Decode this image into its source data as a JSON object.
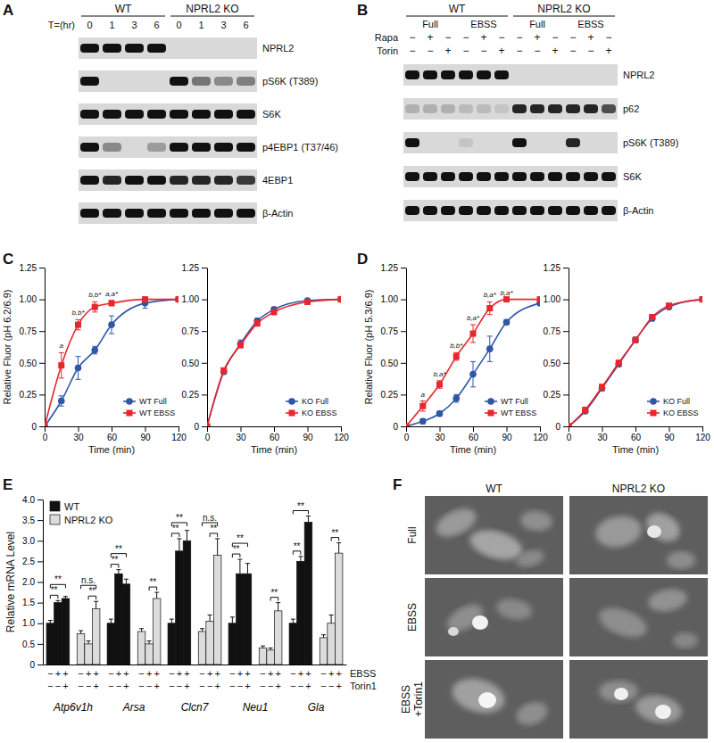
{
  "blots": [
    {
      "panel": "A",
      "groups": [
        {
          "label": "WT",
          "span": 4
        },
        {
          "label": "NPRL2 KO",
          "span": 4
        }
      ],
      "lane_header_label": "T=(hr)",
      "lane_headers": [
        "0",
        "1",
        "3",
        "6",
        "0",
        "1",
        "3",
        "6"
      ],
      "rows": [
        {
          "label": "NPRL2",
          "bands": [
            1,
            1,
            1,
            1,
            0,
            0,
            0,
            0
          ]
        },
        {
          "label": "pS6K (T389)",
          "bands": [
            1,
            0,
            0,
            0,
            1,
            0.5,
            0.4,
            0.45
          ]
        },
        {
          "label": "S6K",
          "bands": [
            1,
            1,
            1,
            1,
            1,
            1,
            1,
            1
          ]
        },
        {
          "label": "p4EBP1 (T37/46)",
          "bands": [
            1,
            0.4,
            0,
            0.3,
            1,
            1,
            1,
            1
          ]
        },
        {
          "label": "4EBP1",
          "bands": [
            1,
            0.9,
            1,
            1,
            0.9,
            0.9,
            0.9,
            0.8
          ]
        },
        {
          "label": "β-Actin",
          "bands": [
            1,
            1,
            1,
            1,
            1,
            1,
            1,
            1
          ]
        }
      ]
    },
    {
      "panel": "B",
      "groups": [
        {
          "label": "WT",
          "span": 6
        },
        {
          "label": "NPRL2 KO",
          "span": 6
        }
      ],
      "subgroups": [
        {
          "label": "Full",
          "span": 3
        },
        {
          "label": "EBSS",
          "span": 3
        },
        {
          "label": "Full",
          "span": 3
        },
        {
          "label": "EBSS",
          "span": 3
        }
      ],
      "treatments": [
        {
          "label": "Rapa",
          "signs": [
            "−",
            "+",
            "−",
            "−",
            "+",
            "−",
            "−",
            "+",
            "−",
            "−",
            "+",
            "−"
          ]
        },
        {
          "label": "Torin",
          "signs": [
            "−",
            "−",
            "+",
            "−",
            "−",
            "+",
            "−",
            "−",
            "+",
            "−",
            "−",
            "+"
          ]
        }
      ],
      "rows": [
        {
          "label": "NPRL2",
          "bands": [
            1,
            1,
            1,
            1,
            1,
            1,
            0,
            0,
            0,
            0,
            0,
            0
          ]
        },
        {
          "label": "p62",
          "bands": [
            0.2,
            0.2,
            0.2,
            0.15,
            0.15,
            0.1,
            0.9,
            0.9,
            0.9,
            0.9,
            0.9,
            0.7
          ]
        },
        {
          "label": "pS6K (T389)",
          "bands": [
            1,
            0,
            0,
            0.1,
            0,
            0,
            1,
            0,
            0,
            0.9,
            0,
            0
          ]
        },
        {
          "label": "S6K",
          "bands": [
            1,
            1,
            1,
            1,
            1,
            1,
            1,
            1,
            1,
            1,
            1,
            1
          ]
        },
        {
          "label": "β-Actin",
          "bands": [
            1,
            1,
            1,
            1,
            1,
            1,
            1,
            1,
            1,
            1,
            1,
            1
          ]
        }
      ]
    }
  ],
  "chart_data": [
    {
      "type": "line",
      "panel": "C",
      "x_label": "Time (min)",
      "y_label": "Relative Fluor (pH 6.2/6.9)",
      "x": [
        0,
        15,
        30,
        45,
        60,
        90,
        120
      ],
      "series": [
        {
          "name": "WT Full",
          "color": "#2e57a6",
          "marker": "circle",
          "values": [
            0,
            0.2,
            0.46,
            0.6,
            0.8,
            0.97,
            1.0
          ],
          "errors": [
            0,
            0.04,
            0.09,
            0.03,
            0.07,
            0.04,
            0
          ]
        },
        {
          "name": "WT EBSS",
          "color": "#e8262d",
          "marker": "square",
          "values": [
            0,
            0.48,
            0.8,
            0.94,
            0.97,
            1.0,
            1.0
          ],
          "errors": [
            0,
            0.1,
            0.04,
            0.04,
            0.02,
            0,
            0
          ]
        }
      ],
      "xlim": [
        0,
        120
      ],
      "ylim": [
        0,
        1.25
      ],
      "xticks": [
        0,
        30,
        60,
        90,
        120
      ],
      "yticks": [
        0,
        0.25,
        {
          "value": 0.5,
          "label": "0.50"
        },
        0.75,
        {
          "value": 1,
          "label": "1.00"
        },
        1.25
      ],
      "legend": "lower right",
      "annotations": [
        {
          "x": 15,
          "text": "a"
        },
        {
          "x": 30,
          "text": "b,b*"
        },
        {
          "x": 45,
          "text": "b,b*"
        },
        {
          "x": 60,
          "text": "a,a*"
        }
      ]
    },
    {
      "type": "line",
      "x_label": "Time (min)",
      "x": [
        0,
        15,
        30,
        45,
        60,
        90,
        120
      ],
      "series": [
        {
          "name": "KO Full",
          "color": "#2e57a6",
          "marker": "circle",
          "values": [
            0,
            0.43,
            0.65,
            0.83,
            0.92,
            0.99,
            1.0
          ],
          "errors": [
            0,
            0.02,
            0.03,
            0.02,
            0.02,
            0.01,
            0
          ]
        },
        {
          "name": "KO EBSS",
          "color": "#e8262d",
          "marker": "square",
          "values": [
            0,
            0.44,
            0.64,
            0.81,
            0.9,
            0.98,
            1.0
          ],
          "errors": [
            0,
            0.02,
            0.02,
            0.02,
            0.02,
            0.01,
            0
          ]
        }
      ],
      "xlim": [
        0,
        120
      ],
      "ylim": [
        0,
        1.25
      ],
      "xticks": [
        0,
        30,
        60,
        90,
        120
      ],
      "yticks": [
        0,
        0.25,
        {
          "value": 0.5,
          "label": "0.50"
        },
        0.75,
        {
          "value": 1,
          "label": "1.00"
        },
        1.25
      ],
      "legend": "lower right"
    },
    {
      "type": "line",
      "panel": "D",
      "x_label": "Time (min)",
      "y_label": "Relative Fluor (pH 5.3/6.9)",
      "x": [
        0,
        15,
        30,
        45,
        60,
        75,
        90,
        120
      ],
      "series": [
        {
          "name": "WT Full",
          "color": "#2e57a6",
          "marker": "circle",
          "values": [
            0,
            0.04,
            0.1,
            0.22,
            0.41,
            0.61,
            0.82,
            0.97
          ],
          "errors": [
            0,
            0.02,
            0.02,
            0.03,
            0.1,
            0.1,
            0.02,
            0.02
          ]
        },
        {
          "name": "WT EBSS",
          "color": "#e8262d",
          "marker": "square",
          "values": [
            0,
            0.16,
            0.33,
            0.55,
            0.73,
            0.93,
            1.0,
            1.0
          ],
          "errors": [
            0,
            0.04,
            0.03,
            0.03,
            0.07,
            0.05,
            0,
            0
          ]
        }
      ],
      "xlim": [
        0,
        120
      ],
      "ylim": [
        0,
        1.25
      ],
      "xticks": [
        0,
        30,
        60,
        90,
        120
      ],
      "yticks": [
        0,
        0.25,
        {
          "value": 0.5,
          "label": "0.50"
        },
        0.75,
        {
          "value": 1,
          "label": "1.00"
        },
        1.25
      ],
      "legend": "lower right",
      "annotations": [
        {
          "x": 15,
          "text": "a"
        },
        {
          "x": 30,
          "text": "b,a*"
        },
        {
          "x": 45,
          "text": "b,b*"
        },
        {
          "x": 60,
          "text": "b,a*"
        },
        {
          "x": 75,
          "text": "b,a*"
        },
        {
          "x": 90,
          "text": "b,a*"
        }
      ]
    },
    {
      "type": "line",
      "x_label": "Time (min)",
      "x": [
        0,
        15,
        30,
        45,
        60,
        75,
        90,
        120
      ],
      "series": [
        {
          "name": "KO Full",
          "color": "#2e57a6",
          "marker": "circle",
          "values": [
            0,
            0.12,
            0.3,
            0.49,
            0.68,
            0.85,
            0.94,
            1.0
          ],
          "errors": [
            0,
            0.01,
            0.02,
            0.02,
            0.02,
            0.02,
            0.01,
            0
          ]
        },
        {
          "name": "KO EBSS",
          "color": "#e8262d",
          "marker": "square",
          "values": [
            0,
            0.13,
            0.31,
            0.5,
            0.68,
            0.86,
            0.95,
            1.0
          ],
          "errors": [
            0,
            0.01,
            0.02,
            0.02,
            0.02,
            0.02,
            0.01,
            0
          ]
        }
      ],
      "xlim": [
        0,
        120
      ],
      "ylim": [
        0,
        1.25
      ],
      "xticks": [
        0,
        30,
        60,
        90,
        120
      ],
      "yticks": [
        0,
        0.25,
        {
          "value": 0.5,
          "label": "0.50"
        },
        0.75,
        {
          "value": 1,
          "label": "1.00"
        },
        1.25
      ],
      "legend": "lower right"
    },
    {
      "type": "bar",
      "panel": "E",
      "y_label": "Relative mRNA Level",
      "categories": [
        "Atp6v1h",
        "Arsa",
        "Clcn7",
        "Neu1",
        "Gla"
      ],
      "conditions": [
        {
          "label": "EBSS",
          "signs": [
            "−",
            "+",
            "+",
            "−",
            "+",
            "+"
          ]
        },
        {
          "label": "Torin1",
          "signs": [
            "−",
            "−",
            "+",
            "−",
            "−",
            "+"
          ]
        }
      ],
      "series": [
        {
          "name": "WT",
          "color": "#111111",
          "values": [
            [
              1.0,
              1.5,
              1.6
            ],
            [
              1.0,
              2.2,
              1.95
            ],
            [
              1.0,
              2.75,
              3.0
            ],
            [
              1.0,
              2.2,
              2.2
            ],
            [
              1.0,
              2.5,
              3.45
            ]
          ],
          "errors": [
            [
              0.07,
              0.05,
              0.05
            ],
            [
              0.1,
              0.1,
              0.12
            ],
            [
              0.1,
              0.3,
              0.25
            ],
            [
              0.15,
              0.35,
              0.25
            ],
            [
              0.1,
              0.12,
              0.15
            ]
          ]
        },
        {
          "name": "NPRL2 KO",
          "color": "#dcdcdc",
          "values": [
            [
              0.75,
              0.5,
              1.35
            ],
            [
              0.8,
              0.5,
              1.6
            ],
            [
              0.8,
              1.05,
              2.65
            ],
            [
              0.4,
              0.35,
              1.3
            ],
            [
              0.65,
              1.0,
              2.7
            ]
          ],
          "errors": [
            [
              0.07,
              0.07,
              0.18
            ],
            [
              0.07,
              0.07,
              0.15
            ],
            [
              0.07,
              0.15,
              0.4
            ],
            [
              0.05,
              0.05,
              0.2
            ],
            [
              0.07,
              0.2,
              0.25
            ]
          ]
        }
      ],
      "ylim": [
        0,
        4
      ],
      "yticks": [
        0,
        0.5,
        {
          "value": 1,
          "label": "1.0"
        },
        1.5,
        {
          "value": 2,
          "label": "2.0"
        },
        2.5,
        {
          "value": 3,
          "label": "3.0"
        },
        3.5,
        {
          "value": 4,
          "label": "4.0"
        }
      ],
      "legend": "upper left",
      "brackets": [
        [
          {
            "from": 0,
            "to": 1,
            "text": "**"
          },
          {
            "from": 0,
            "to": 2,
            "text": "**"
          },
          {
            "from": 4,
            "to": 5,
            "text": "**"
          },
          {
            "from": 3,
            "to": 5,
            "text": "n.s."
          }
        ],
        [
          {
            "from": 0,
            "to": 1,
            "text": "**"
          },
          {
            "from": 0,
            "to": 2,
            "text": "**"
          },
          {
            "from": 4,
            "to": 5,
            "text": "**"
          }
        ],
        [
          {
            "from": 0,
            "to": 1,
            "text": "**"
          },
          {
            "from": 0,
            "to": 2,
            "text": "**"
          },
          {
            "from": 4,
            "to": 5,
            "text": "**"
          },
          {
            "from": 3,
            "to": 5,
            "text": "n.s."
          }
        ],
        [
          {
            "from": 0,
            "to": 1,
            "text": "**"
          },
          {
            "from": 0,
            "to": 2,
            "text": "**"
          },
          {
            "from": 4,
            "to": 5,
            "text": "**"
          }
        ],
        [
          {
            "from": 0,
            "to": 1,
            "text": "**"
          },
          {
            "from": 0,
            "to": 2,
            "text": "**"
          },
          {
            "from": 4,
            "to": 5,
            "text": "**"
          }
        ]
      ]
    }
  ],
  "images": {
    "panel": "F",
    "columns": [
      "WT",
      "NPRL2 KO"
    ],
    "rows": [
      [
        "Full"
      ],
      [
        "EBSS"
      ],
      [
        "EBSS",
        "+Torin1"
      ]
    ]
  }
}
